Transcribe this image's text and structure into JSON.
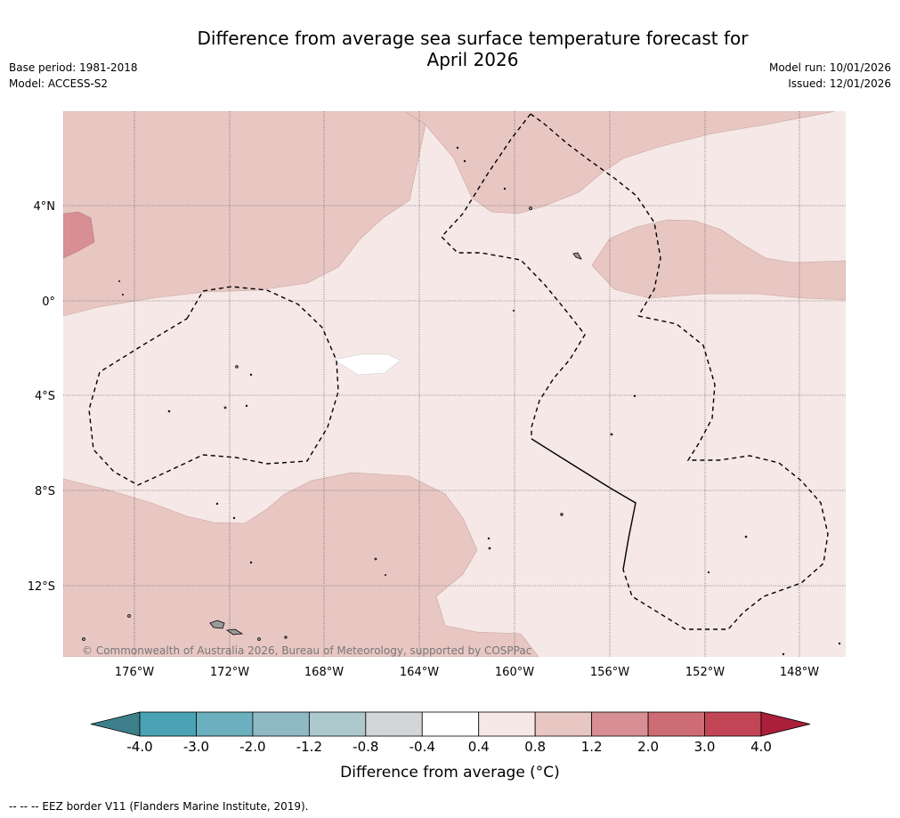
{
  "title_line1": "Difference from average sea surface temperature forecast for",
  "title_line2": "April 2026",
  "base_period": "Base period: 1981-2018",
  "model": "Model: ACCESS-S2",
  "model_run": "Model run: 10/01/2026",
  "issued": "Issued: 12/01/2026",
  "copyright": "© Commonwealth of Australia 2026, Bureau of Meteorology, supported by COSPPac",
  "footnote": "--  --  -- EEZ border V11 (Flanders Marine Institute, 2019).",
  "map": {
    "lat_labels": [
      "4°N",
      "0°",
      "4°S",
      "8°S",
      "12°S"
    ],
    "lon_labels": [
      "176°W",
      "172°W",
      "168°W",
      "164°W",
      "160°W",
      "156°W",
      "152°W",
      "148°W"
    ],
    "legend": "--  --  -- EEZ border V11 (Flanders Marine Institute, 2019)."
  },
  "colorbar": {
    "label": "Difference from average (°C)",
    "ticks": [
      "-4.0",
      "-3.0",
      "-2.0",
      "-1.2",
      "-0.8",
      "-0.4",
      "0.4",
      "0.8",
      "1.2",
      "2.0",
      "3.0",
      "4.0"
    ],
    "colors": [
      "#3d7f8a",
      "#4aa3b4",
      "#6cafbe",
      "#8fbac4",
      "#aec9ce",
      "#d3d6d8",
      "#ffffff",
      "#f5e8e7",
      "#e8c7c3",
      "#d78f94",
      "#cd6c75",
      "#c24555",
      "#ab1f3a"
    ]
  }
}
